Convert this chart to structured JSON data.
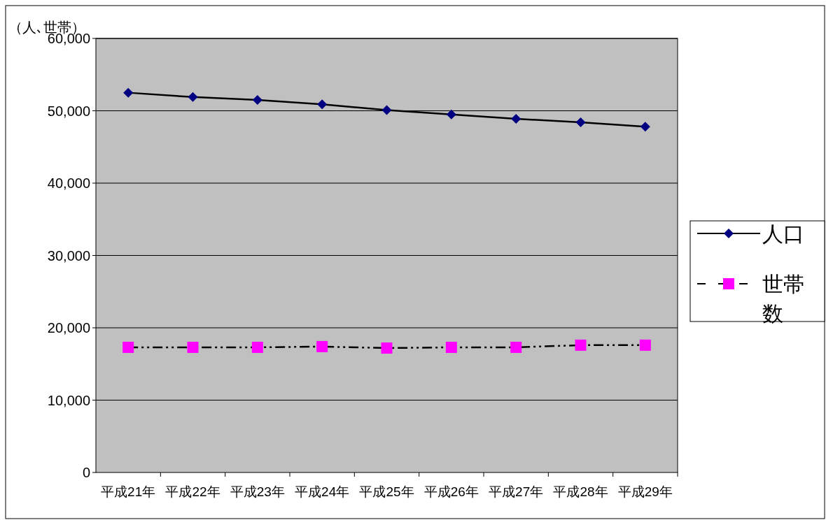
{
  "chart_data": {
    "type": "line",
    "ylabel": "（人､世帯）",
    "categories": [
      "平成21年",
      "平成22年",
      "平成23年",
      "平成24年",
      "平成25年",
      "平成26年",
      "平成27年",
      "平成28年",
      "平成29年"
    ],
    "series": [
      {
        "name": "人口",
        "color": "#000080",
        "marker": "diamond",
        "line_style": "solid",
        "values": [
          52500,
          51900,
          51500,
          50900,
          50100,
          49500,
          48900,
          48400,
          47800
        ]
      },
      {
        "name": "世帯数",
        "color": "#ff00ff",
        "marker": "square",
        "line_style": "dashed",
        "values": [
          17300,
          17300,
          17300,
          17400,
          17200,
          17300,
          17300,
          17600,
          17600
        ]
      }
    ],
    "ylim": [
      0,
      60000
    ],
    "yticks": [
      0,
      {
        "value": 10000,
        "label": "10,000"
      },
      {
        "value": 20000,
        "label": "20,000"
      },
      {
        "value": 30000,
        "label": "30,000"
      },
      {
        "value": 40000,
        "label": "40,000"
      },
      {
        "value": 50000,
        "label": "50,000"
      },
      {
        "value": 60000,
        "label": "60,000"
      }
    ],
    "grid": "y",
    "legend": "right"
  }
}
